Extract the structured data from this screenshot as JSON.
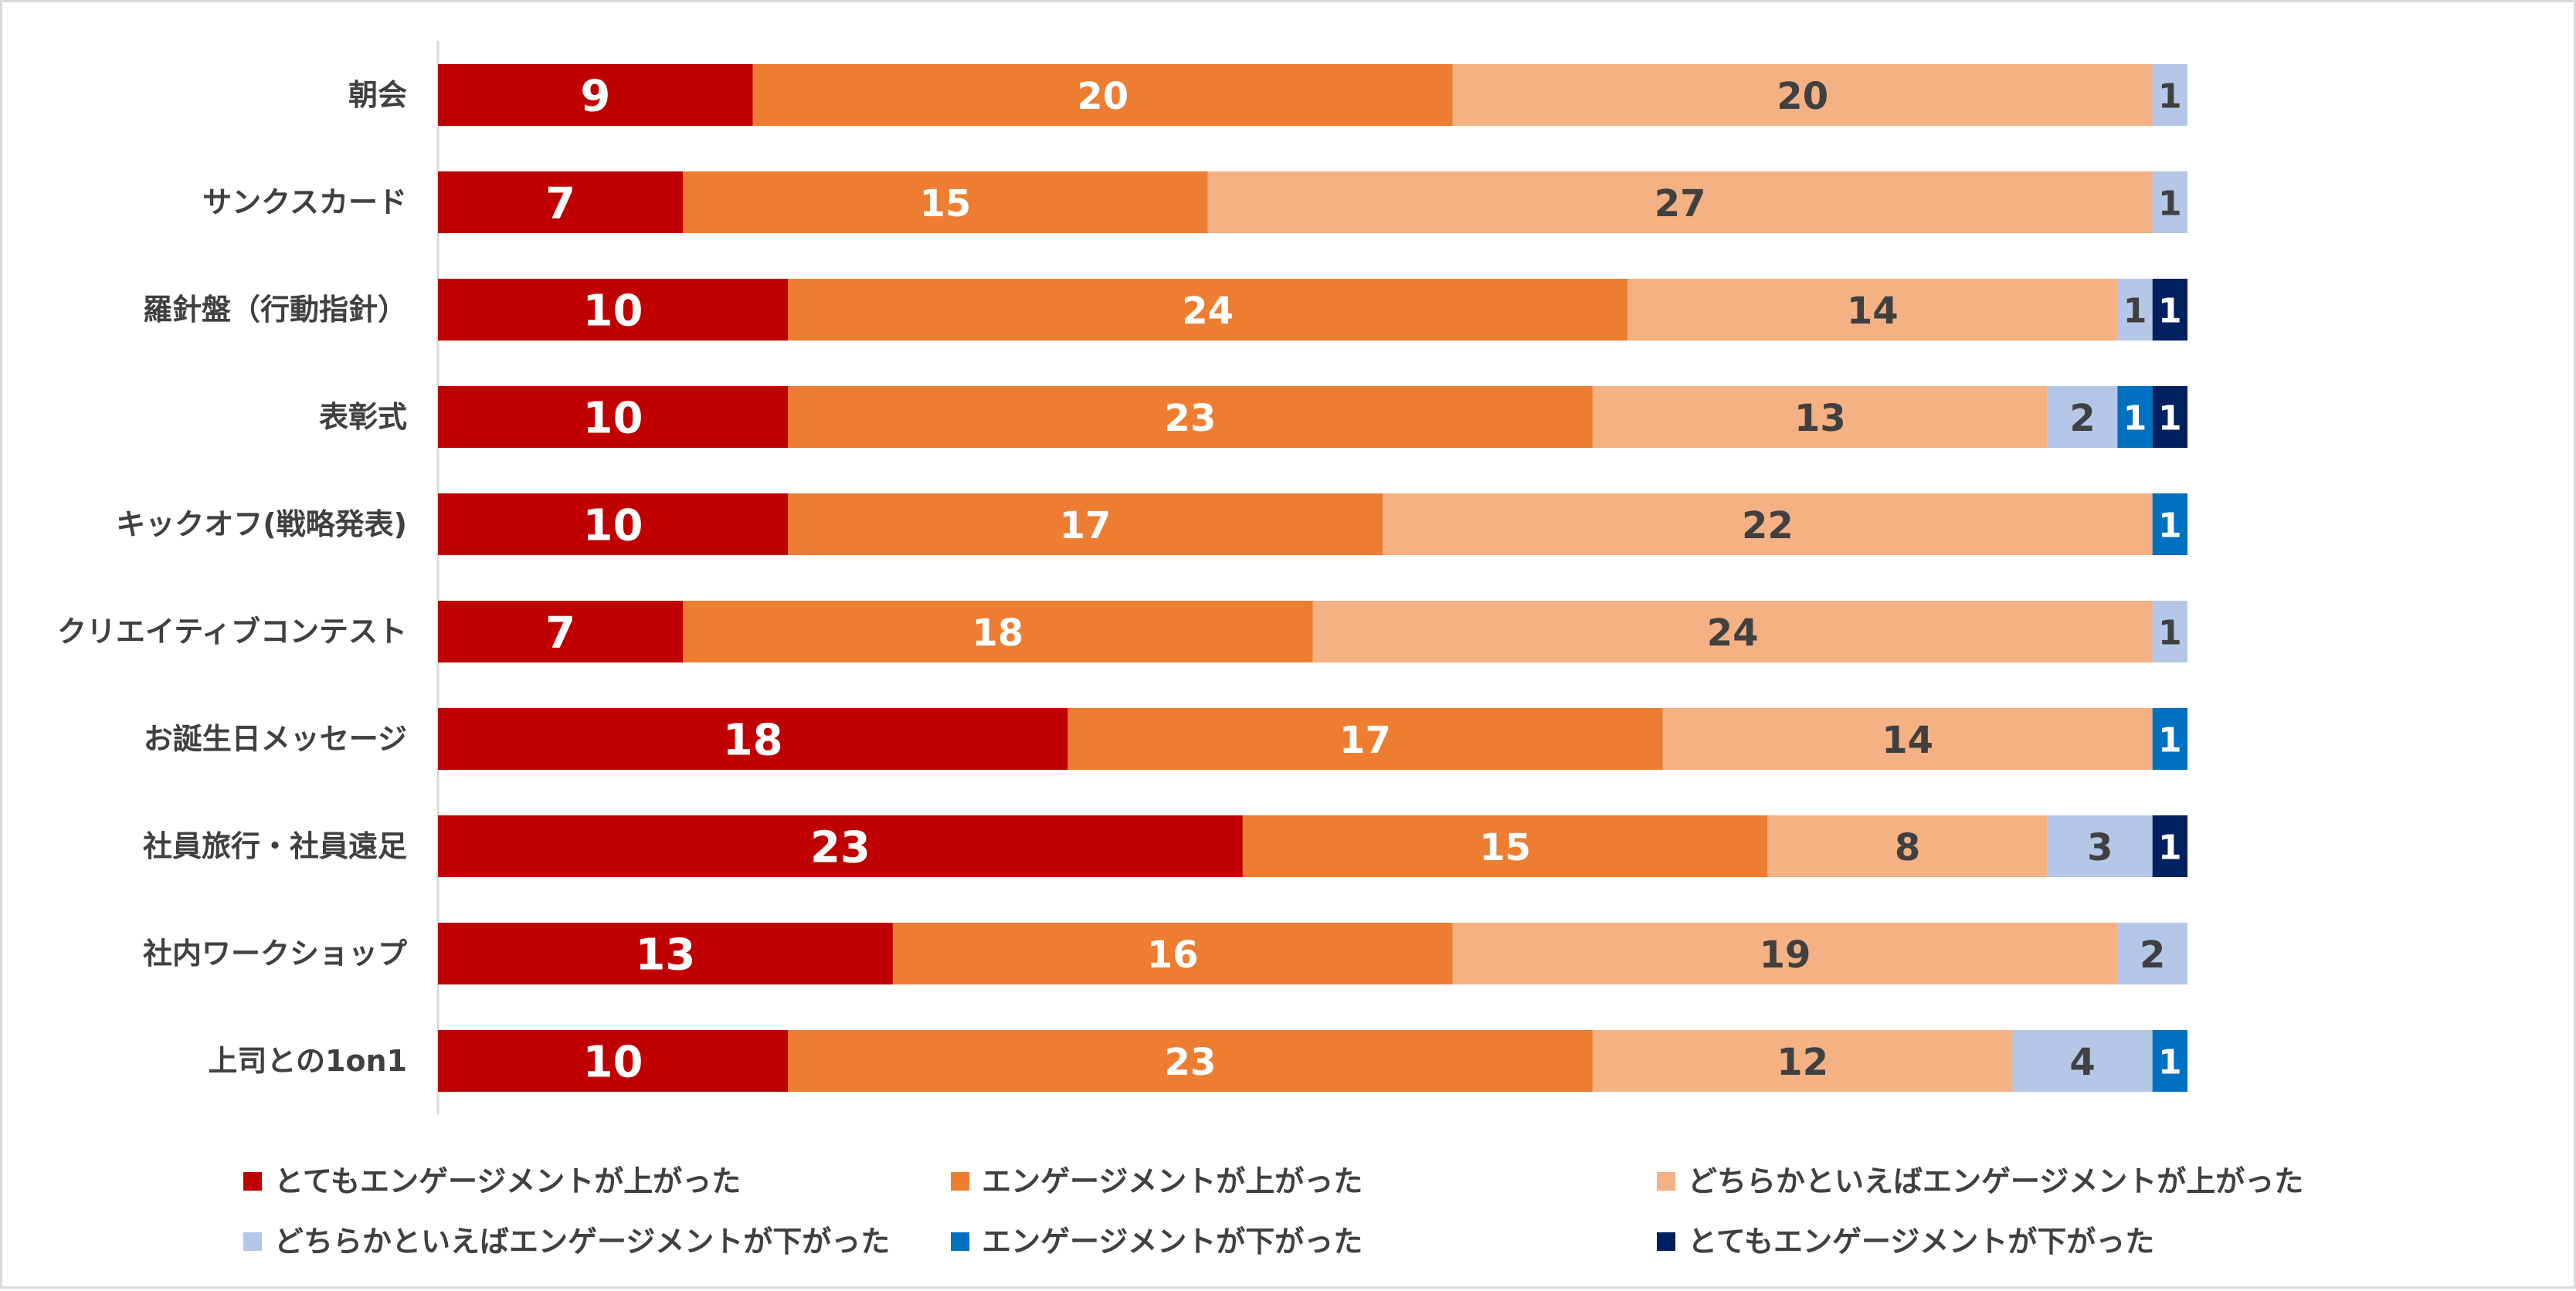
{
  "chart_data": {
    "type": "bar",
    "orientation": "horizontal",
    "stacked": true,
    "title": "",
    "xlabel": "",
    "ylabel": "",
    "xlim": [
      0,
      50
    ],
    "grid": false,
    "legend_position": "bottom",
    "categories": [
      "朝会",
      "サンクスカード",
      "羅針盤（行動指針）",
      "表彰式",
      "キックオフ(戦略発表)",
      "クリエイティブコンテスト",
      "お誕生日メッセージ",
      "社員旅行・社員遠足",
      "社内ワークショップ",
      "上司との1on1"
    ],
    "series": [
      {
        "name": "とてもエンゲージメントが上がった",
        "color": "#c00000",
        "label_color": "#ffffff",
        "values": [
          9,
          7,
          10,
          10,
          10,
          7,
          18,
          23,
          13,
          10
        ]
      },
      {
        "name": "エンゲージメントが上がった",
        "color": "#ed7d31",
        "label_color": "#ffffff",
        "values": [
          20,
          15,
          24,
          23,
          17,
          18,
          17,
          15,
          16,
          23
        ]
      },
      {
        "name": "どちらかといえばエンゲージメントが上がった",
        "color": "#f4b183",
        "label_color": "#404040",
        "values": [
          20,
          27,
          14,
          13,
          22,
          24,
          14,
          8,
          19,
          12
        ]
      },
      {
        "name": "どちらかといえばエンゲージメントが下がった",
        "color": "#b4c7e7",
        "label_color": "#404040",
        "values": [
          1,
          1,
          1,
          2,
          0,
          1,
          0,
          3,
          2,
          4
        ]
      },
      {
        "name": "エンゲージメントが下がった",
        "color": "#0070c0",
        "label_color": "#ffffff",
        "values": [
          0,
          0,
          0,
          1,
          1,
          0,
          1,
          0,
          0,
          1
        ]
      },
      {
        "name": "とてもエンゲージメントが下がった",
        "color": "#002060",
        "label_color": "#ffffff",
        "values": [
          0,
          0,
          1,
          1,
          0,
          0,
          0,
          1,
          0,
          0
        ]
      }
    ]
  }
}
